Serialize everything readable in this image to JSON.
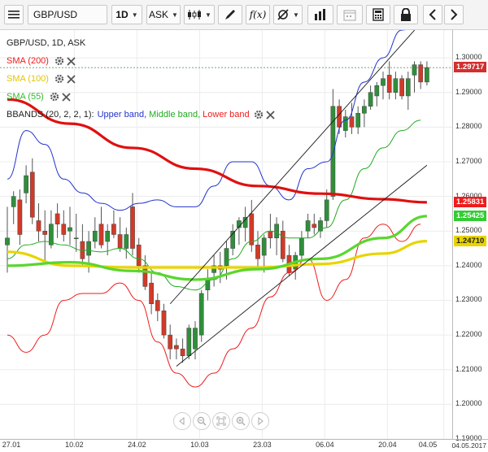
{
  "toolbar": {
    "menu_icon": "hamburger-menu-icon",
    "symbol": "GBP/USD",
    "timeframe": "1D",
    "price_side": "ASK",
    "tools": [
      "candlestick-type-icon",
      "pencil-draw-icon",
      "function-indicators-icon",
      "crosshair-settings-icon",
      "bar-volume-icon",
      "calendar-icon",
      "calculator-icon",
      "lock-icon",
      "prev-arrow-icon",
      "next-arrow-icon"
    ],
    "fx_label": "f(x)"
  },
  "legend": {
    "title": "GBP/USD, 1D, ASK",
    "sma200": {
      "label": "SMA (200)",
      "color": "#ee1c1c"
    },
    "sma100": {
      "label": "SMA (100)",
      "color": "#e8d400"
    },
    "sma55": {
      "label": "SMA (55)",
      "color": "#33cc33"
    },
    "bbands": {
      "label": "BBANDS (20, 2, 2, 1):",
      "upper": {
        "label": "Upper band,",
        "color": "#2233cc"
      },
      "middle": {
        "label": "Middle band,",
        "color": "#22aa22"
      },
      "lower": {
        "label": "Lower band",
        "color": "#ee1c1c"
      }
    }
  },
  "price_tags": [
    {
      "value": "1.29717",
      "y": 1.29717,
      "color": "#d32f2f"
    },
    {
      "value": "1.25831",
      "y": 1.25831,
      "color": "#ee1c1c"
    },
    {
      "value": "1.25425",
      "y": 1.25425,
      "color": "#33cc33"
    },
    {
      "value": "1.24710",
      "y": 1.2471,
      "color": "#e8d400",
      "text_color": "#222222"
    }
  ],
  "chart_data": {
    "type": "candlestick",
    "ylim": [
      1.19,
      1.308
    ],
    "y_ticks": [
      "1.30000",
      "1.29000",
      "1.28000",
      "1.27000",
      "1.26000",
      "1.25000",
      "1.24000",
      "1.23000",
      "1.22000",
      "1.21000",
      "1.20000",
      "1.19000"
    ],
    "x_labels": [
      "27.01",
      "10.02",
      "24.02",
      "10.03",
      "23.03",
      "06.04",
      "20.04",
      "04.05"
    ],
    "x_corner_label": "04.05.2017",
    "candles": [
      {
        "o": 1.246,
        "h": 1.257,
        "l": 1.238,
        "c": 1.248
      },
      {
        "o": 1.257,
        "h": 1.2615,
        "l": 1.252,
        "c": 1.26
      },
      {
        "o": 1.259,
        "h": 1.262,
        "l": 1.246,
        "c": 1.249
      },
      {
        "o": 1.261,
        "h": 1.269,
        "l": 1.258,
        "c": 1.266
      },
      {
        "o": 1.267,
        "h": 1.271,
        "l": 1.252,
        "c": 1.254
      },
      {
        "o": 1.253,
        "h": 1.258,
        "l": 1.247,
        "c": 1.25
      },
      {
        "o": 1.25,
        "h": 1.256,
        "l": 1.241,
        "c": 1.249
      },
      {
        "o": 1.246,
        "h": 1.256,
        "l": 1.245,
        "c": 1.252
      },
      {
        "o": 1.255,
        "h": 1.258,
        "l": 1.248,
        "c": 1.252
      },
      {
        "o": 1.252,
        "h": 1.256,
        "l": 1.247,
        "c": 1.249
      },
      {
        "o": 1.25,
        "h": 1.257,
        "l": 1.246,
        "c": 1.251
      },
      {
        "o": 1.248,
        "h": 1.255,
        "l": 1.244,
        "c": 1.248
      },
      {
        "o": 1.247,
        "h": 1.252,
        "l": 1.24,
        "c": 1.242
      },
      {
        "o": 1.243,
        "h": 1.25,
        "l": 1.238,
        "c": 1.247
      },
      {
        "o": 1.247,
        "h": 1.254,
        "l": 1.245,
        "c": 1.25
      },
      {
        "o": 1.252,
        "h": 1.257,
        "l": 1.245,
        "c": 1.246
      },
      {
        "o": 1.247,
        "h": 1.252,
        "l": 1.243,
        "c": 1.25
      },
      {
        "o": 1.252,
        "h": 1.256,
        "l": 1.248,
        "c": 1.249
      },
      {
        "o": 1.249,
        "h": 1.254,
        "l": 1.244,
        "c": 1.245
      },
      {
        "o": 1.245,
        "h": 1.251,
        "l": 1.242,
        "c": 1.249
      },
      {
        "o": 1.257,
        "h": 1.261,
        "l": 1.243,
        "c": 1.245
      },
      {
        "o": 1.246,
        "h": 1.248,
        "l": 1.238,
        "c": 1.24
      },
      {
        "o": 1.24,
        "h": 1.243,
        "l": 1.233,
        "c": 1.234
      },
      {
        "o": 1.235,
        "h": 1.238,
        "l": 1.226,
        "c": 1.229
      },
      {
        "o": 1.23,
        "h": 1.232,
        "l": 1.224,
        "c": 1.227
      },
      {
        "o": 1.227,
        "h": 1.229,
        "l": 1.219,
        "c": 1.22
      },
      {
        "o": 1.22,
        "h": 1.223,
        "l": 1.213,
        "c": 1.216
      },
      {
        "o": 1.217,
        "h": 1.219,
        "l": 1.213,
        "c": 1.216
      },
      {
        "o": 1.216,
        "h": 1.219,
        "l": 1.212,
        "c": 1.214
      },
      {
        "o": 1.214,
        "h": 1.223,
        "l": 1.213,
        "c": 1.222
      },
      {
        "o": 1.216,
        "h": 1.224,
        "l": 1.213,
        "c": 1.222
      },
      {
        "o": 1.22,
        "h": 1.233,
        "l": 1.218,
        "c": 1.232
      },
      {
        "o": 1.233,
        "h": 1.239,
        "l": 1.23,
        "c": 1.236
      },
      {
        "o": 1.238,
        "h": 1.243,
        "l": 1.234,
        "c": 1.24
      },
      {
        "o": 1.24,
        "h": 1.244,
        "l": 1.235,
        "c": 1.239
      },
      {
        "o": 1.24,
        "h": 1.247,
        "l": 1.236,
        "c": 1.245
      },
      {
        "o": 1.245,
        "h": 1.252,
        "l": 1.243,
        "c": 1.25
      },
      {
        "o": 1.251,
        "h": 1.254,
        "l": 1.246,
        "c": 1.253
      },
      {
        "o": 1.251,
        "h": 1.257,
        "l": 1.247,
        "c": 1.254
      },
      {
        "o": 1.255,
        "h": 1.259,
        "l": 1.244,
        "c": 1.246
      },
      {
        "o": 1.246,
        "h": 1.25,
        "l": 1.239,
        "c": 1.242
      },
      {
        "o": 1.243,
        "h": 1.249,
        "l": 1.238,
        "c": 1.248
      },
      {
        "o": 1.25,
        "h": 1.255,
        "l": 1.245,
        "c": 1.248
      },
      {
        "o": 1.248,
        "h": 1.254,
        "l": 1.243,
        "c": 1.252
      },
      {
        "o": 1.25,
        "h": 1.253,
        "l": 1.241,
        "c": 1.242
      },
      {
        "o": 1.243,
        "h": 1.246,
        "l": 1.237,
        "c": 1.238
      },
      {
        "o": 1.239,
        "h": 1.244,
        "l": 1.236,
        "c": 1.243
      },
      {
        "o": 1.243,
        "h": 1.25,
        "l": 1.241,
        "c": 1.248
      },
      {
        "o": 1.25,
        "h": 1.255,
        "l": 1.248,
        "c": 1.253
      },
      {
        "o": 1.252,
        "h": 1.255,
        "l": 1.249,
        "c": 1.251
      },
      {
        "o": 1.25,
        "h": 1.254,
        "l": 1.248,
        "c": 1.253
      },
      {
        "o": 1.253,
        "h": 1.262,
        "l": 1.251,
        "c": 1.259
      },
      {
        "o": 1.26,
        "h": 1.291,
        "l": 1.259,
        "c": 1.286
      },
      {
        "o": 1.286,
        "h": 1.288,
        "l": 1.278,
        "c": 1.28
      },
      {
        "o": 1.279,
        "h": 1.285,
        "l": 1.277,
        "c": 1.283
      },
      {
        "o": 1.283,
        "h": 1.287,
        "l": 1.278,
        "c": 1.28
      },
      {
        "o": 1.28,
        "h": 1.286,
        "l": 1.278,
        "c": 1.284
      },
      {
        "o": 1.284,
        "h": 1.288,
        "l": 1.28,
        "c": 1.286
      },
      {
        "o": 1.286,
        "h": 1.292,
        "l": 1.285,
        "c": 1.29
      },
      {
        "o": 1.289,
        "h": 1.293,
        "l": 1.286,
        "c": 1.292
      },
      {
        "o": 1.292,
        "h": 1.296,
        "l": 1.288,
        "c": 1.294
      },
      {
        "o": 1.295,
        "h": 1.299,
        "l": 1.288,
        "c": 1.29
      },
      {
        "o": 1.29,
        "h": 1.296,
        "l": 1.288,
        "c": 1.294
      },
      {
        "o": 1.294,
        "h": 1.295,
        "l": 1.288,
        "c": 1.289
      },
      {
        "o": 1.289,
        "h": 1.296,
        "l": 1.285,
        "c": 1.294
      },
      {
        "o": 1.295,
        "h": 1.299,
        "l": 1.29,
        "c": 1.298
      },
      {
        "o": 1.298,
        "h": 1.299,
        "l": 1.291,
        "c": 1.293
      },
      {
        "o": 1.293,
        "h": 1.299,
        "l": 1.292,
        "c": 1.2972
      }
    ],
    "series": [
      {
        "name": "SMA (200)",
        "color": "#e01010",
        "x": [
          0,
          10,
          20,
          30,
          40,
          50,
          60,
          67
        ],
        "y": [
          1.288,
          1.281,
          1.274,
          1.268,
          1.263,
          1.2608,
          1.2592,
          1.2583
        ]
      },
      {
        "name": "SMA (100)",
        "color": "#e8d400",
        "x": [
          0,
          10,
          20,
          30,
          40,
          50,
          60,
          67
        ],
        "y": [
          1.244,
          1.24,
          1.2395,
          1.2395,
          1.2395,
          1.2405,
          1.2435,
          1.2471
        ]
      },
      {
        "name": "SMA (55)",
        "color": "#5ad630",
        "x": [
          0,
          10,
          20,
          30,
          40,
          50,
          60,
          67
        ],
        "y": [
          1.24,
          1.241,
          1.2385,
          1.236,
          1.239,
          1.242,
          1.248,
          1.2543
        ]
      },
      {
        "name": "Upper band",
        "color": "#2233cc",
        "x": [
          0,
          3,
          6,
          9,
          12,
          15,
          18,
          21,
          24,
          27,
          30,
          33,
          36,
          39,
          42,
          45,
          48,
          51,
          54,
          57,
          60,
          63,
          66
        ],
        "y": [
          1.265,
          1.279,
          1.275,
          1.265,
          1.261,
          1.258,
          1.256,
          1.258,
          1.259,
          1.257,
          1.257,
          1.263,
          1.27,
          1.27,
          1.263,
          1.259,
          1.268,
          1.27,
          1.282,
          1.293,
          1.3,
          1.308,
          1.31
        ]
      },
      {
        "name": "Middle band",
        "color": "#22aa22",
        "x": [
          0,
          3,
          6,
          9,
          12,
          15,
          18,
          21,
          24,
          27,
          30,
          33,
          36,
          39,
          42,
          45,
          48,
          51,
          54,
          57,
          60,
          63,
          66
        ],
        "y": [
          1.242,
          1.246,
          1.247,
          1.246,
          1.2445,
          1.244,
          1.245,
          1.242,
          1.238,
          1.234,
          1.233,
          1.236,
          1.242,
          1.247,
          1.25,
          1.248,
          1.248,
          1.251,
          1.259,
          1.268,
          1.274,
          1.279,
          1.282
        ]
      },
      {
        "name": "Lower band",
        "color": "#ee1c1c",
        "x": [
          0,
          3,
          6,
          9,
          12,
          15,
          18,
          21,
          24,
          27,
          30,
          33,
          36,
          39,
          42,
          45,
          48,
          51,
          54,
          57,
          60,
          63,
          66
        ],
        "y": [
          1.22,
          1.215,
          1.22,
          1.23,
          1.232,
          1.232,
          1.235,
          1.23,
          1.218,
          1.209,
          1.205,
          1.209,
          1.216,
          1.222,
          1.231,
          1.238,
          1.242,
          1.23,
          1.236,
          1.248,
          1.252,
          1.247,
          1.252
        ]
      }
    ],
    "trend_lines": [
      {
        "x1": 27,
        "y1": 1.211,
        "x2": 67,
        "y2": 1.269
      },
      {
        "x1": 26,
        "y1": 1.229,
        "x2": 67,
        "y2": 1.312
      }
    ]
  },
  "nav": {
    "buttons": [
      "scroll-left-icon",
      "zoom-out-icon",
      "reset-view-icon",
      "zoom-in-icon",
      "scroll-right-icon"
    ]
  }
}
